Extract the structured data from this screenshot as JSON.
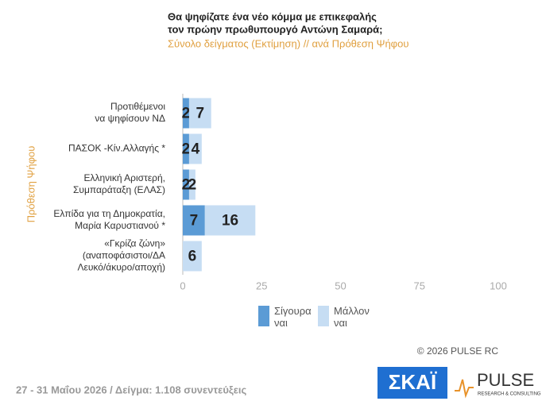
{
  "chart_data": {
    "type": "stacked-barh",
    "title": [
      "Θα ψηφίζατε ένα νέο κόμμα με επικεφαλής",
      "τον πρώην πρωθυπουργό Αντώνη Σαμαρά;"
    ],
    "subtitle": "Σύνολο δείγματος (Εκτίμηση) // ανά Πρόθεση Ψήφου",
    "y_label": "Πρόθεση Ψήφου",
    "categories": [
      [
        "Προτιθέμενοι",
        "να ψηφίσουν ΝΔ"
      ],
      [
        "ΠΑΣΟΚ -Κίν.Αλλαγής *"
      ],
      [
        "Ελληνική Αριστερή,",
        "Συμπαράταξη (ΕΛΑΣ)"
      ],
      [
        "Ελπίδα για τη Δημοκρατία,",
        "Μαρία Καρυστιανού *"
      ],
      [
        "«Γκρίζα ζώνη»",
        "(αναποφάσιστοι/ΔΑ",
        "Λευκό/άκυρο/αποχή)"
      ]
    ],
    "series": [
      {
        "name": "Σίγουρα ναι",
        "color": "#5b9bd5",
        "values": [
          2,
          2,
          2,
          7,
          null
        ]
      },
      {
        "name": "Μάλλον ναι",
        "color": "#c6ddf3",
        "values": [
          7,
          4,
          2,
          16,
          6
        ]
      }
    ],
    "xlim": [
      0,
      100
    ],
    "xticks": [
      0,
      25,
      50,
      75,
      100
    ],
    "grid": false
  },
  "footer": {
    "date": "27 - 31 Μαΐου 2026  /  Δείγμα:  1.108 συνεντεύξεις",
    "copyright": "© 2026 PULSE RC",
    "logo_skai": "ΣΚΑΪ",
    "logo_pulse": "PULSE",
    "logo_pulse_sub": "RESEARCH & CONSULTING"
  }
}
